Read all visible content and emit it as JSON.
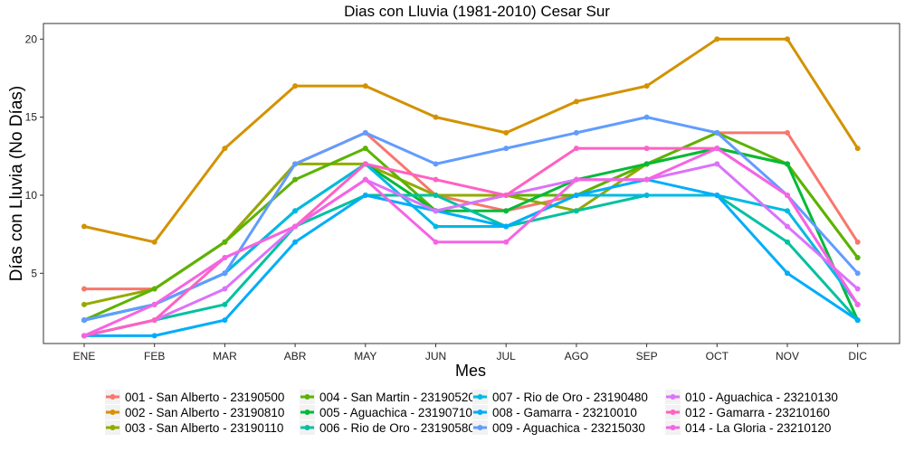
{
  "chart_data": {
    "type": "line",
    "title": "Dias con Lluvia (1981-2010)  Cesar Sur",
    "xlabel": "Mes",
    "ylabel": "Días con Lluvia (No Días)",
    "categories": [
      "ENE",
      "FEB",
      "MAR",
      "ABR",
      "MAY",
      "JUN",
      "JUL",
      "AGO",
      "SEP",
      "OCT",
      "NOV",
      "DIC"
    ],
    "ylim": [
      0.5,
      21.0
    ],
    "yticks": [
      5,
      10,
      15,
      20
    ],
    "grid": false,
    "legend_position": "bottom",
    "series": [
      {
        "name": "001 - San Alberto - 23190500",
        "color": "#F8766D",
        "values": [
          4,
          4,
          7,
          12,
          14,
          10,
          9,
          10,
          12,
          14,
          14,
          7
        ]
      },
      {
        "name": "002 - San Alberto - 23190810",
        "color": "#D39200",
        "values": [
          8,
          7,
          13,
          17,
          17,
          15,
          14,
          16,
          17,
          20,
          20,
          13
        ]
      },
      {
        "name": "003 - San Alberto - 23190110",
        "color": "#93AA00",
        "values": [
          3,
          4,
          7,
          12,
          12,
          10,
          10,
          9,
          12,
          13,
          12,
          6
        ]
      },
      {
        "name": "004 - San Martin - 23190520",
        "color": "#5BB300",
        "values": [
          2,
          4,
          7,
          11,
          13,
          9,
          10,
          10,
          12,
          14,
          12,
          6
        ]
      },
      {
        "name": "005 - Aguachica - 23190710",
        "color": "#00BA38",
        "values": [
          2,
          3,
          5,
          9,
          12,
          9,
          9,
          11,
          12,
          13,
          12,
          2
        ]
      },
      {
        "name": "006 - Rio de Oro - 23190580",
        "color": "#00C19F",
        "values": [
          1,
          2,
          3,
          8,
          10,
          10,
          8,
          9,
          10,
          10,
          7,
          2
        ]
      },
      {
        "name": "007 - Rio de Oro - 23190480",
        "color": "#00B9E3",
        "values": [
          2,
          3,
          5,
          9,
          12,
          8,
          8,
          10,
          10,
          10,
          9,
          3
        ]
      },
      {
        "name": "008 - Gamarra - 23210010",
        "color": "#00ADFA",
        "values": [
          1,
          1,
          2,
          7,
          10,
          9,
          8,
          10,
          11,
          10,
          5,
          2
        ]
      },
      {
        "name": "009 - Aguachica - 23215030",
        "color": "#619CFF",
        "values": [
          2,
          3,
          5,
          12,
          14,
          12,
          13,
          14,
          15,
          14,
          10,
          5
        ]
      },
      {
        "name": "010 - Aguachica - 23210130",
        "color": "#DB72FB",
        "values": [
          1,
          2,
          4,
          8,
          11,
          9,
          10,
          11,
          11,
          12,
          8,
          4
        ]
      },
      {
        "name": "012 - Gamarra - 23210160",
        "color": "#FF61C3",
        "values": [
          1,
          2,
          6,
          8,
          12,
          11,
          10,
          13,
          13,
          13,
          10,
          3
        ]
      },
      {
        "name": "014 - La Gloria - 23210120",
        "color": "#F564E3",
        "values": [
          1,
          3,
          6,
          8,
          11,
          7,
          7,
          11,
          11,
          13,
          10,
          3
        ]
      }
    ]
  }
}
